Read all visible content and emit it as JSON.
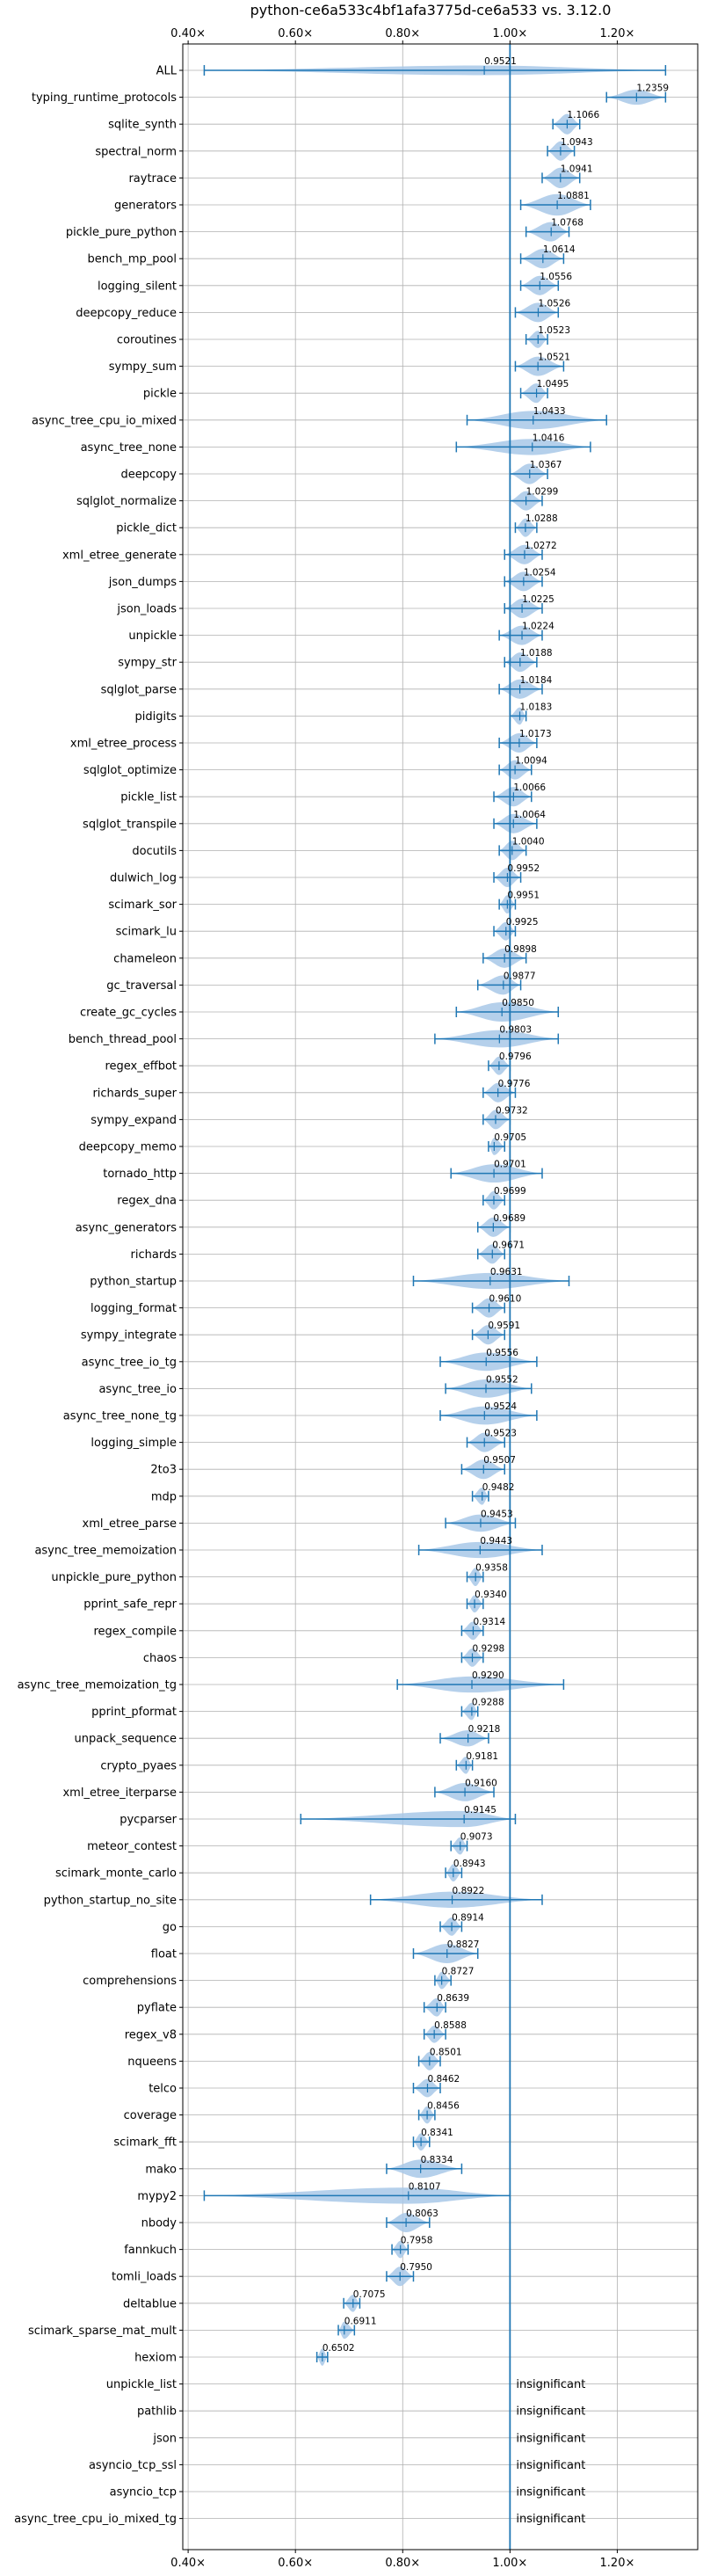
{
  "chart_data": {
    "type": "violin",
    "title": "python-ce6a533c4bf1afa3775d-ce6a533 vs. 3.12.0",
    "xlim": [
      0.39,
      1.35
    ],
    "x_ticks": [
      0.4,
      0.6,
      0.8,
      1.0,
      1.2
    ],
    "x_tick_labels": [
      "0.40×",
      "0.60×",
      "0.80×",
      "1.00×",
      "1.20×"
    ],
    "reference_line": 1.0,
    "grid": true,
    "colors": {
      "violin": "#a8c8e8",
      "line": "#1f77b4",
      "grid": "#b0b0b0"
    },
    "insignificant_label": "insignificant",
    "benchmarks": [
      {
        "name": "ALL",
        "value": 0.9521,
        "lo": 0.43,
        "hi": 1.29,
        "width": 0.18
      },
      {
        "name": "typing_runtime_protocols",
        "value": 1.2359,
        "lo": 1.18,
        "hi": 1.29,
        "width": 0.28
      },
      {
        "name": "sqlite_synth",
        "value": 1.1066,
        "lo": 1.08,
        "hi": 1.13,
        "width": 0.38
      },
      {
        "name": "spectral_norm",
        "value": 1.0943,
        "lo": 1.07,
        "hi": 1.12,
        "width": 0.36
      },
      {
        "name": "raytrace",
        "value": 1.0941,
        "lo": 1.06,
        "hi": 1.13,
        "width": 0.38
      },
      {
        "name": "generators",
        "value": 1.0881,
        "lo": 1.02,
        "hi": 1.15,
        "width": 0.4
      },
      {
        "name": "pickle_pure_python",
        "value": 1.0768,
        "lo": 1.03,
        "hi": 1.11,
        "width": 0.36
      },
      {
        "name": "bench_mp_pool",
        "value": 1.0614,
        "lo": 1.02,
        "hi": 1.1,
        "width": 0.36
      },
      {
        "name": "logging_silent",
        "value": 1.0556,
        "lo": 1.02,
        "hi": 1.09,
        "width": 0.36
      },
      {
        "name": "deepcopy_reduce",
        "value": 1.0526,
        "lo": 1.01,
        "hi": 1.09,
        "width": 0.36
      },
      {
        "name": "coroutines",
        "value": 1.0523,
        "lo": 1.03,
        "hi": 1.07,
        "width": 0.32
      },
      {
        "name": "sympy_sum",
        "value": 1.0521,
        "lo": 1.01,
        "hi": 1.1,
        "width": 0.36
      },
      {
        "name": "pickle",
        "value": 1.0495,
        "lo": 1.02,
        "hi": 1.07,
        "width": 0.36
      },
      {
        "name": "async_tree_cpu_io_mixed",
        "value": 1.0433,
        "lo": 0.92,
        "hi": 1.18,
        "width": 0.34
      },
      {
        "name": "async_tree_none",
        "value": 1.0416,
        "lo": 0.9,
        "hi": 1.15,
        "width": 0.3
      },
      {
        "name": "deepcopy",
        "value": 1.0367,
        "lo": 1.0,
        "hi": 1.07,
        "width": 0.38
      },
      {
        "name": "sqlglot_normalize",
        "value": 1.0299,
        "lo": 1.0,
        "hi": 1.06,
        "width": 0.36
      },
      {
        "name": "pickle_dict",
        "value": 1.0288,
        "lo": 1.01,
        "hi": 1.05,
        "width": 0.34
      },
      {
        "name": "xml_etree_generate",
        "value": 1.0272,
        "lo": 0.99,
        "hi": 1.06,
        "width": 0.36
      },
      {
        "name": "json_dumps",
        "value": 1.0254,
        "lo": 0.99,
        "hi": 1.06,
        "width": 0.36
      },
      {
        "name": "json_loads",
        "value": 1.0225,
        "lo": 0.99,
        "hi": 1.06,
        "width": 0.36
      },
      {
        "name": "unpickle",
        "value": 1.0224,
        "lo": 0.98,
        "hi": 1.06,
        "width": 0.36
      },
      {
        "name": "sympy_str",
        "value": 1.0188,
        "lo": 0.99,
        "hi": 1.05,
        "width": 0.36
      },
      {
        "name": "sqlglot_parse",
        "value": 1.0184,
        "lo": 0.98,
        "hi": 1.06,
        "width": 0.36
      },
      {
        "name": "pidigits",
        "value": 1.0183,
        "lo": 1.0,
        "hi": 1.03,
        "width": 0.32
      },
      {
        "name": "xml_etree_process",
        "value": 1.0173,
        "lo": 0.98,
        "hi": 1.05,
        "width": 0.36
      },
      {
        "name": "sqlglot_optimize",
        "value": 1.0094,
        "lo": 0.98,
        "hi": 1.04,
        "width": 0.36
      },
      {
        "name": "pickle_list",
        "value": 1.0066,
        "lo": 0.97,
        "hi": 1.04,
        "width": 0.36
      },
      {
        "name": "sqlglot_transpile",
        "value": 1.0064,
        "lo": 0.97,
        "hi": 1.05,
        "width": 0.36
      },
      {
        "name": "docutils",
        "value": 1.004,
        "lo": 0.98,
        "hi": 1.03,
        "width": 0.36
      },
      {
        "name": "dulwich_log",
        "value": 0.9952,
        "lo": 0.97,
        "hi": 1.02,
        "width": 0.36
      },
      {
        "name": "scimark_sor",
        "value": 0.9951,
        "lo": 0.98,
        "hi": 1.01,
        "width": 0.34
      },
      {
        "name": "scimark_lu",
        "value": 0.9925,
        "lo": 0.97,
        "hi": 1.01,
        "width": 0.34
      },
      {
        "name": "chameleon",
        "value": 0.9898,
        "lo": 0.95,
        "hi": 1.03,
        "width": 0.36
      },
      {
        "name": "gc_traversal",
        "value": 0.9877,
        "lo": 0.94,
        "hi": 1.02,
        "width": 0.36
      },
      {
        "name": "create_gc_cycles",
        "value": 0.985,
        "lo": 0.9,
        "hi": 1.09,
        "width": 0.36
      },
      {
        "name": "bench_thread_pool",
        "value": 0.9803,
        "lo": 0.86,
        "hi": 1.09,
        "width": 0.32
      },
      {
        "name": "regex_effbot",
        "value": 0.9796,
        "lo": 0.96,
        "hi": 1.0,
        "width": 0.34
      },
      {
        "name": "richards_super",
        "value": 0.9776,
        "lo": 0.95,
        "hi": 1.01,
        "width": 0.36
      },
      {
        "name": "sympy_expand",
        "value": 0.9732,
        "lo": 0.95,
        "hi": 1.0,
        "width": 0.36
      },
      {
        "name": "deepcopy_memo",
        "value": 0.9705,
        "lo": 0.96,
        "hi": 0.99,
        "width": 0.32
      },
      {
        "name": "tornado_http",
        "value": 0.9701,
        "lo": 0.89,
        "hi": 1.06,
        "width": 0.34
      },
      {
        "name": "regex_dna",
        "value": 0.9699,
        "lo": 0.95,
        "hi": 0.99,
        "width": 0.34
      },
      {
        "name": "async_generators",
        "value": 0.9689,
        "lo": 0.94,
        "hi": 1.0,
        "width": 0.36
      },
      {
        "name": "richards",
        "value": 0.9671,
        "lo": 0.94,
        "hi": 0.99,
        "width": 0.36
      },
      {
        "name": "python_startup",
        "value": 0.9631,
        "lo": 0.82,
        "hi": 1.11,
        "width": 0.3
      },
      {
        "name": "logging_format",
        "value": 0.961,
        "lo": 0.93,
        "hi": 0.99,
        "width": 0.36
      },
      {
        "name": "sympy_integrate",
        "value": 0.9591,
        "lo": 0.93,
        "hi": 0.99,
        "width": 0.36
      },
      {
        "name": "async_tree_io_tg",
        "value": 0.9556,
        "lo": 0.87,
        "hi": 1.05,
        "width": 0.34
      },
      {
        "name": "async_tree_io",
        "value": 0.9552,
        "lo": 0.88,
        "hi": 1.04,
        "width": 0.34
      },
      {
        "name": "async_tree_none_tg",
        "value": 0.9524,
        "lo": 0.87,
        "hi": 1.05,
        "width": 0.34
      },
      {
        "name": "logging_simple",
        "value": 0.9523,
        "lo": 0.92,
        "hi": 0.99,
        "width": 0.36
      },
      {
        "name": "2to3",
        "value": 0.9507,
        "lo": 0.91,
        "hi": 0.99,
        "width": 0.36
      },
      {
        "name": "mdp",
        "value": 0.9482,
        "lo": 0.93,
        "hi": 0.96,
        "width": 0.32
      },
      {
        "name": "xml_etree_parse",
        "value": 0.9453,
        "lo": 0.88,
        "hi": 1.01,
        "width": 0.32
      },
      {
        "name": "async_tree_memoization",
        "value": 0.9443,
        "lo": 0.83,
        "hi": 1.06,
        "width": 0.3
      },
      {
        "name": "unpickle_pure_python",
        "value": 0.9358,
        "lo": 0.92,
        "hi": 0.95,
        "width": 0.34
      },
      {
        "name": "pprint_safe_repr",
        "value": 0.934,
        "lo": 0.92,
        "hi": 0.95,
        "width": 0.32
      },
      {
        "name": "regex_compile",
        "value": 0.9314,
        "lo": 0.91,
        "hi": 0.95,
        "width": 0.34
      },
      {
        "name": "chaos",
        "value": 0.9298,
        "lo": 0.91,
        "hi": 0.95,
        "width": 0.34
      },
      {
        "name": "async_tree_memoization_tg",
        "value": 0.929,
        "lo": 0.79,
        "hi": 1.1,
        "width": 0.3
      },
      {
        "name": "pprint_pformat",
        "value": 0.9288,
        "lo": 0.91,
        "hi": 0.94,
        "width": 0.32
      },
      {
        "name": "unpack_sequence",
        "value": 0.9218,
        "lo": 0.87,
        "hi": 0.96,
        "width": 0.3
      },
      {
        "name": "crypto_pyaes",
        "value": 0.9181,
        "lo": 0.9,
        "hi": 0.93,
        "width": 0.32
      },
      {
        "name": "xml_etree_iterparse",
        "value": 0.916,
        "lo": 0.86,
        "hi": 0.97,
        "width": 0.34
      },
      {
        "name": "pycparser",
        "value": 0.9145,
        "lo": 0.61,
        "hi": 1.01,
        "width": 0.3
      },
      {
        "name": "meteor_contest",
        "value": 0.9073,
        "lo": 0.89,
        "hi": 0.92,
        "width": 0.32
      },
      {
        "name": "scimark_monte_carlo",
        "value": 0.8943,
        "lo": 0.88,
        "hi": 0.91,
        "width": 0.32
      },
      {
        "name": "python_startup_no_site",
        "value": 0.8922,
        "lo": 0.74,
        "hi": 1.06,
        "width": 0.3
      },
      {
        "name": "go",
        "value": 0.8914,
        "lo": 0.87,
        "hi": 0.91,
        "width": 0.34
      },
      {
        "name": "float",
        "value": 0.8827,
        "lo": 0.82,
        "hi": 0.94,
        "width": 0.36
      },
      {
        "name": "comprehensions",
        "value": 0.8727,
        "lo": 0.86,
        "hi": 0.89,
        "width": 0.32
      },
      {
        "name": "pyflate",
        "value": 0.8639,
        "lo": 0.84,
        "hi": 0.88,
        "width": 0.34
      },
      {
        "name": "regex_v8",
        "value": 0.8588,
        "lo": 0.84,
        "hi": 0.88,
        "width": 0.32
      },
      {
        "name": "nqueens",
        "value": 0.8501,
        "lo": 0.83,
        "hi": 0.87,
        "width": 0.34
      },
      {
        "name": "telco",
        "value": 0.8462,
        "lo": 0.82,
        "hi": 0.87,
        "width": 0.34
      },
      {
        "name": "coverage",
        "value": 0.8456,
        "lo": 0.83,
        "hi": 0.86,
        "width": 0.32
      },
      {
        "name": "scimark_fft",
        "value": 0.8341,
        "lo": 0.82,
        "hi": 0.85,
        "width": 0.32
      },
      {
        "name": "mako",
        "value": 0.8334,
        "lo": 0.77,
        "hi": 0.91,
        "width": 0.34
      },
      {
        "name": "mypy2",
        "value": 0.8107,
        "lo": 0.43,
        "hi": 1.0,
        "width": 0.3
      },
      {
        "name": "nbody",
        "value": 0.8063,
        "lo": 0.77,
        "hi": 0.85,
        "width": 0.36
      },
      {
        "name": "fannkuch",
        "value": 0.7958,
        "lo": 0.78,
        "hi": 0.81,
        "width": 0.32
      },
      {
        "name": "tomli_loads",
        "value": 0.795,
        "lo": 0.77,
        "hi": 0.82,
        "width": 0.36
      },
      {
        "name": "deltablue",
        "value": 0.7075,
        "lo": 0.69,
        "hi": 0.72,
        "width": 0.32
      },
      {
        "name": "scimark_sparse_mat_mult",
        "value": 0.6911,
        "lo": 0.68,
        "hi": 0.71,
        "width": 0.32
      },
      {
        "name": "hexiom",
        "value": 0.6502,
        "lo": 0.64,
        "hi": 0.66,
        "width": 0.32
      },
      {
        "name": "unpickle_list",
        "value": null
      },
      {
        "name": "pathlib",
        "value": null
      },
      {
        "name": "json",
        "value": null
      },
      {
        "name": "asyncio_tcp_ssl",
        "value": null
      },
      {
        "name": "asyncio_tcp",
        "value": null
      },
      {
        "name": "async_tree_cpu_io_mixed_tg",
        "value": null
      }
    ]
  }
}
